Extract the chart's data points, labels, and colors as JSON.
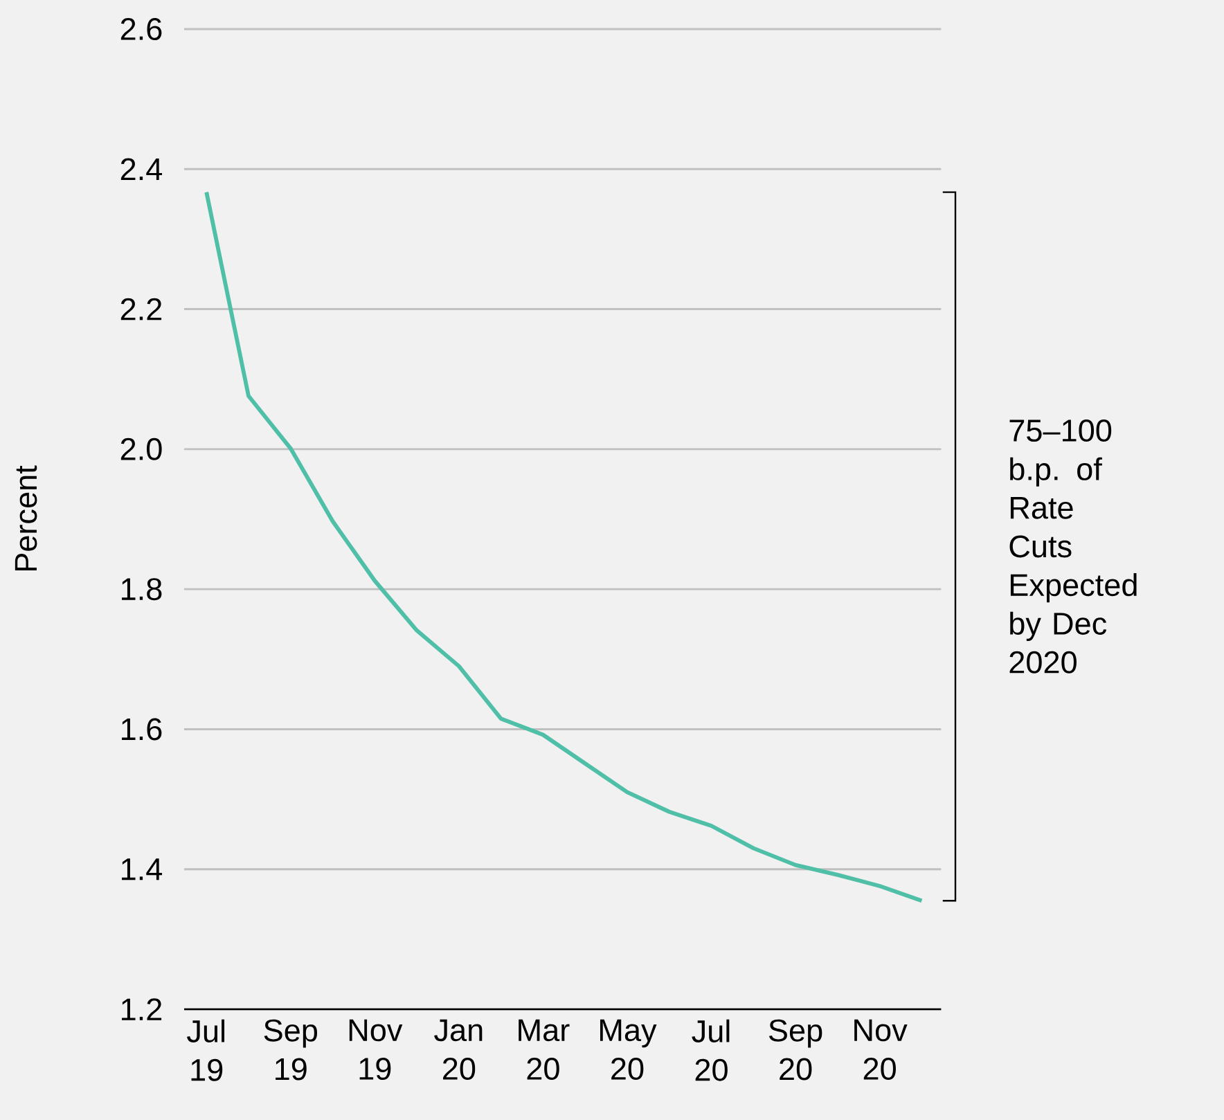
{
  "chart_data": {
    "type": "line",
    "ylabel": "Percent",
    "categories": [
      "Jul 19",
      null,
      "Sep 19",
      null,
      "Nov 19",
      null,
      "Jan 20",
      null,
      "Mar 20",
      null,
      "May 20",
      null,
      "Jul 20",
      null,
      "Sep 20",
      null,
      "Nov 20",
      null
    ],
    "series": [
      {
        "color": "#4fbfa8",
        "values": [
          2.367,
          2.076,
          2.001,
          1.897,
          1.812,
          1.741,
          1.69,
          1.615,
          1.592,
          1.551,
          1.51,
          1.482,
          1.462,
          1.43,
          1.406,
          1.392,
          1.376,
          1.355
        ]
      }
    ],
    "ylim": [
      1.2,
      2.6
    ],
    "yticks": [
      1.2,
      1.4,
      1.6,
      1.8,
      {
        "value": 2.0,
        "label": "2.0"
      },
      2.2,
      2.4,
      2.6
    ],
    "grid": "y",
    "marker": "none",
    "line_style": "solid",
    "annotations": [
      "75–100 b.p. of Rate Cuts Expected by Dec 2020"
    ]
  }
}
